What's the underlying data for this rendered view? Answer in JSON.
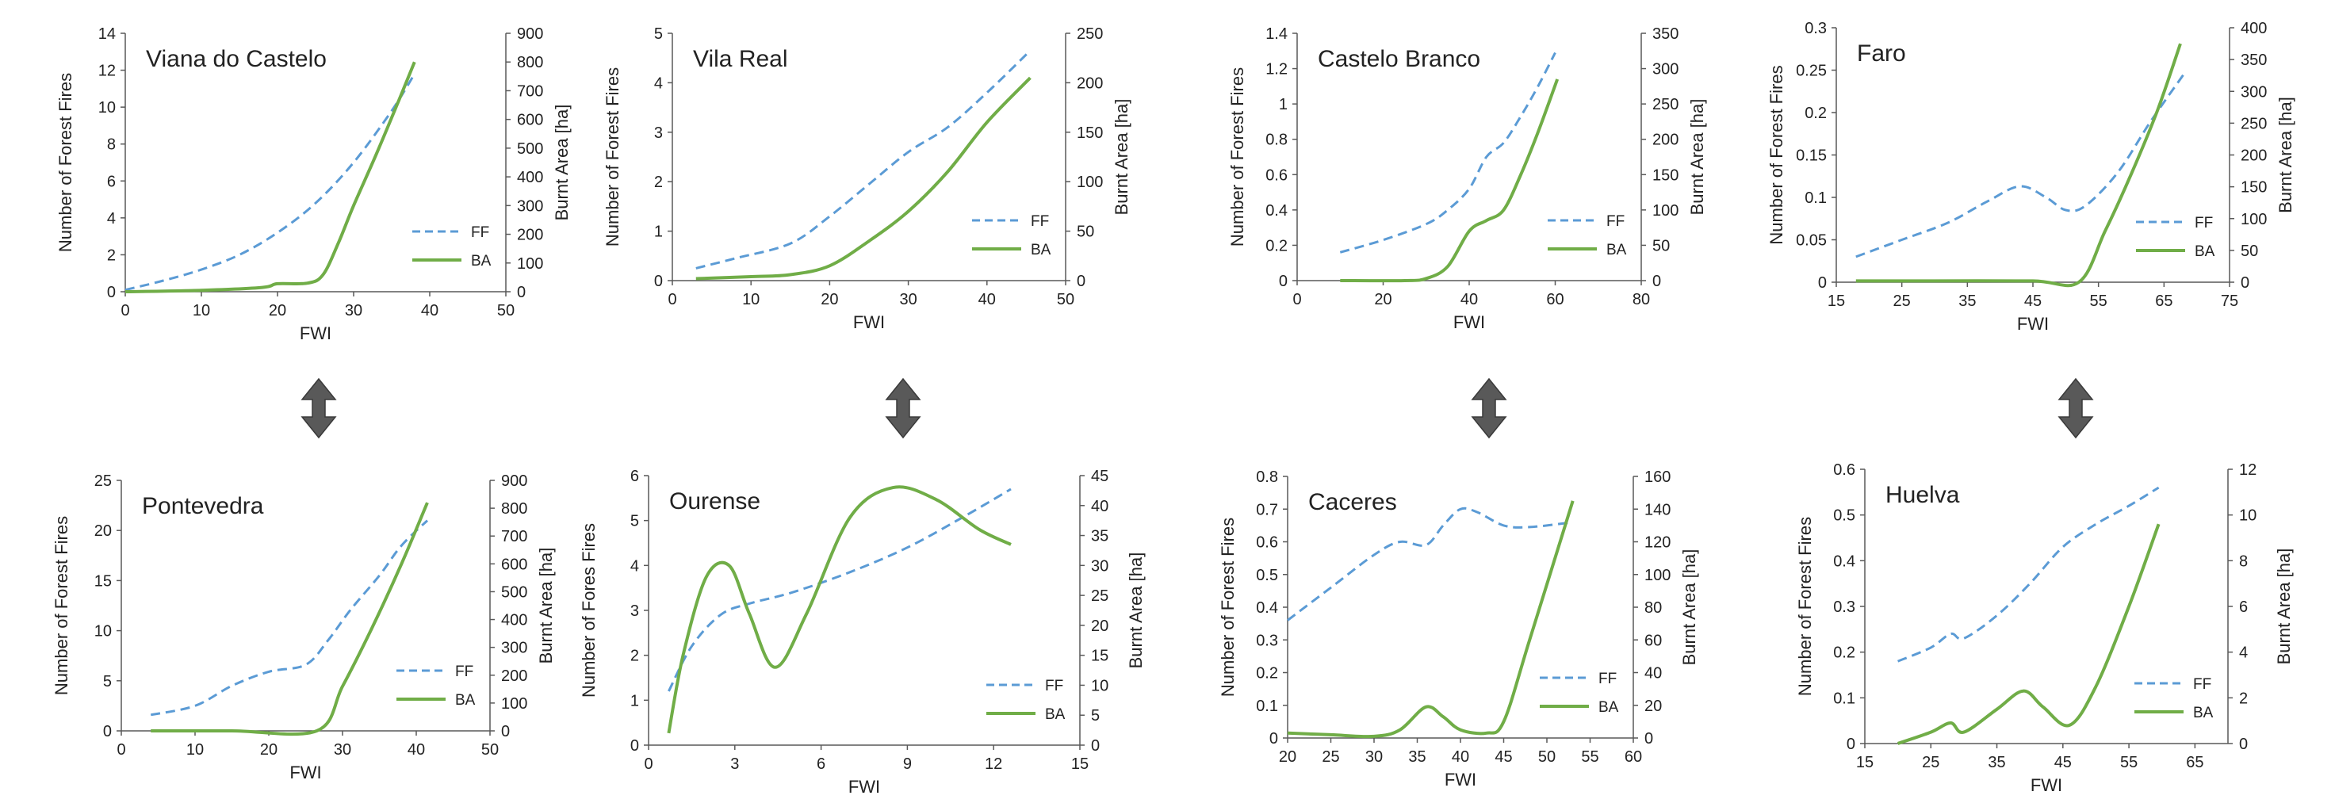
{
  "colors": {
    "ff": "#5B9BD5",
    "ba": "#70AD47",
    "axis": "#595959",
    "arrow": "#595959"
  },
  "icons": [
    "double-headed-vertical-arrow-icon"
  ],
  "chart_data": [
    {
      "id": "viana",
      "type": "line",
      "title": "Viana do Castelo",
      "xlabel": "FWI",
      "ylabel": "Number of Forest Fires",
      "y2label": "Burnt Area [ha]",
      "xlim": [
        0,
        50
      ],
      "xticks": [
        0,
        10,
        20,
        30,
        40,
        50
      ],
      "ylim": [
        0,
        14
      ],
      "yticks": [
        0,
        2,
        4,
        6,
        8,
        10,
        12,
        14
      ],
      "y2lim": [
        0,
        900
      ],
      "y2ticks": [
        0,
        100,
        200,
        300,
        400,
        500,
        600,
        700,
        800,
        900
      ],
      "legend": "bottom-right",
      "series": [
        {
          "name": "FF",
          "axis": "left",
          "style": "dashed",
          "x": [
            0,
            5,
            10,
            15,
            20,
            25,
            30,
            35,
            38
          ],
          "y": [
            0.1,
            0.6,
            1.2,
            2.0,
            3.2,
            4.8,
            7.0,
            9.8,
            11.8
          ]
        },
        {
          "name": "BA",
          "axis": "right",
          "style": "solid",
          "x": [
            0,
            10,
            18,
            20,
            24,
            26,
            28,
            30,
            33,
            36,
            38
          ],
          "y": [
            0,
            5,
            15,
            28,
            30,
            60,
            170,
            300,
            480,
            670,
            800
          ]
        }
      ]
    },
    {
      "id": "vilareal",
      "type": "line",
      "title": "Vila Real",
      "xlabel": "FWI",
      "ylabel": "Number of Forest Fires",
      "y2label": "Burnt Area [ha]",
      "xlim": [
        0,
        50
      ],
      "xticks": [
        0,
        10,
        20,
        30,
        40,
        50
      ],
      "ylim": [
        0,
        5
      ],
      "yticks": [
        0,
        1,
        2,
        3,
        4,
        5
      ],
      "y2lim": [
        0,
        250
      ],
      "y2ticks": [
        0,
        50,
        100,
        150,
        200,
        250
      ],
      "legend": "bottom-right",
      "series": [
        {
          "name": "FF",
          "axis": "left",
          "style": "dashed",
          "x": [
            3,
            8,
            15,
            20,
            25,
            30,
            35,
            40,
            45.5
          ],
          "y": [
            0.25,
            0.45,
            0.75,
            1.3,
            1.95,
            2.6,
            3.1,
            3.8,
            4.65
          ]
        },
        {
          "name": "BA",
          "axis": "right",
          "style": "solid",
          "x": [
            3,
            10,
            15,
            20,
            25,
            30,
            35,
            40,
            45.5
          ],
          "y": [
            2,
            4,
            6,
            15,
            40,
            70,
            110,
            160,
            205
          ]
        }
      ]
    },
    {
      "id": "castelobranco",
      "type": "line",
      "title": "Castelo Branco",
      "xlabel": "FWI",
      "ylabel": "Number of Forest Fires",
      "y2label": "Burnt Area [ha]",
      "xlim": [
        0,
        80
      ],
      "xticks": [
        0,
        20,
        40,
        60,
        80
      ],
      "ylim": [
        0,
        1.4
      ],
      "yticks": [
        0,
        0.2,
        0.4,
        0.6,
        0.8,
        1,
        1.2,
        1.4
      ],
      "y2lim": [
        0,
        350
      ],
      "y2ticks": [
        0,
        50,
        100,
        150,
        200,
        250,
        300,
        350
      ],
      "legend": "bottom-right",
      "series": [
        {
          "name": "FF",
          "axis": "left",
          "style": "dashed",
          "x": [
            10,
            20,
            30,
            35,
            40,
            44,
            48,
            52,
            56,
            60
          ],
          "y": [
            0.16,
            0.23,
            0.32,
            0.4,
            0.52,
            0.7,
            0.78,
            0.93,
            1.1,
            1.29
          ]
        },
        {
          "name": "BA",
          "axis": "right",
          "style": "solid",
          "x": [
            10,
            25,
            30,
            35,
            40,
            44,
            48,
            52,
            56,
            60.5
          ],
          "y": [
            0,
            0,
            3,
            20,
            70,
            85,
            100,
            150,
            210,
            285
          ]
        }
      ]
    },
    {
      "id": "faro",
      "type": "line",
      "title": "Faro",
      "xlabel": "FWI",
      "ylabel": "Number of Forest Fires",
      "y2label": "Burnt Area [ha]",
      "xlim": [
        15,
        75
      ],
      "xticks": [
        15,
        25,
        35,
        45,
        55,
        65,
        75
      ],
      "ylim": [
        0,
        0.3
      ],
      "yticks": [
        0,
        0.05,
        0.1,
        0.15,
        0.2,
        0.25,
        0.3
      ],
      "y2lim": [
        0,
        400
      ],
      "y2ticks": [
        0,
        50,
        100,
        150,
        200,
        250,
        300,
        350,
        400
      ],
      "legend": "bottom-right",
      "series": [
        {
          "name": "FF",
          "axis": "left",
          "style": "dashed",
          "x": [
            18,
            25,
            32,
            38,
            43,
            47,
            50,
            53,
            58,
            63,
            68
          ],
          "y": [
            0.03,
            0.05,
            0.07,
            0.095,
            0.113,
            0.1,
            0.085,
            0.09,
            0.13,
            0.19,
            0.245
          ]
        },
        {
          "name": "BA",
          "axis": "right",
          "style": "solid",
          "x": [
            18,
            30,
            45,
            52,
            56,
            60,
            64,
            67.5
          ],
          "y": [
            2,
            2,
            2,
            0,
            80,
            170,
            270,
            375
          ]
        }
      ]
    },
    {
      "id": "pontevedra",
      "type": "line",
      "title": "Pontevedra",
      "xlabel": "FWI",
      "ylabel": "Number of Forest Fires",
      "y2label": "Burnt Area [ha]",
      "xlim": [
        0,
        50
      ],
      "xticks": [
        0,
        10,
        20,
        30,
        40,
        50
      ],
      "ylim": [
        0,
        25
      ],
      "yticks": [
        0,
        5,
        10,
        15,
        20,
        25
      ],
      "y2lim": [
        0,
        900
      ],
      "y2ticks": [
        0,
        100,
        200,
        300,
        400,
        500,
        600,
        700,
        800,
        900
      ],
      "legend": "bottom-right",
      "series": [
        {
          "name": "FF",
          "axis": "left",
          "style": "dashed",
          "x": [
            4,
            10,
            15,
            20,
            25,
            28,
            31,
            35,
            38,
            41.5
          ],
          "y": [
            1.6,
            2.5,
            4.5,
            5.9,
            6.6,
            9.0,
            12.0,
            15.5,
            18.5,
            21
          ]
        },
        {
          "name": "BA",
          "axis": "right",
          "style": "solid",
          "x": [
            4,
            15,
            26.5,
            30,
            34,
            38,
            41.5
          ],
          "y": [
            0,
            0,
            0,
            160,
            370,
            600,
            820
          ]
        }
      ]
    },
    {
      "id": "ourense",
      "type": "line",
      "title": "Ourense",
      "xlabel": "FWI",
      "ylabel": "Number of Fores Fires",
      "y2label": "Burnt Area [ha]",
      "xlim": [
        0,
        15
      ],
      "xticks": [
        0,
        3,
        6,
        9,
        12,
        15
      ],
      "ylim": [
        0,
        6
      ],
      "yticks": [
        0,
        1,
        2,
        3,
        4,
        5,
        6
      ],
      "y2lim": [
        0,
        45
      ],
      "y2ticks": [
        0,
        5,
        10,
        15,
        20,
        25,
        30,
        35,
        40,
        45
      ],
      "legend": "bottom-right",
      "series": [
        {
          "name": "FF",
          "axis": "left",
          "style": "dashed",
          "x": [
            0.7,
            1.5,
            2.5,
            3.5,
            5,
            7,
            9,
            11,
            12.6
          ],
          "y": [
            1.2,
            2.2,
            2.9,
            3.15,
            3.4,
            3.85,
            4.4,
            5.1,
            5.7
          ]
        },
        {
          "name": "BA",
          "axis": "right",
          "style": "solid",
          "x": [
            0.7,
            1.2,
            2,
            2.8,
            3.5,
            4.4,
            5.5,
            7,
            8.5,
            10,
            11.5,
            12.6
          ],
          "y": [
            2,
            15,
            28,
            30,
            22,
            13,
            22,
            38,
            43,
            41,
            36,
            33.5
          ]
        }
      ]
    },
    {
      "id": "caceres",
      "type": "line",
      "title": "Caceres",
      "xlabel": "FWI",
      "ylabel": "Number of Forest Fires",
      "y2label": "Burnt Area [ha]",
      "xlim": [
        20,
        60
      ],
      "xticks": [
        20,
        25,
        30,
        35,
        40,
        45,
        50,
        55,
        60
      ],
      "ylim": [
        0,
        0.8
      ],
      "yticks": [
        0,
        0.1,
        0.2,
        0.3,
        0.4,
        0.5,
        0.6,
        0.7,
        0.8
      ],
      "y2lim": [
        0,
        160
      ],
      "y2ticks": [
        0,
        20,
        40,
        60,
        80,
        100,
        120,
        140,
        160
      ],
      "legend": "bottom-right",
      "series": [
        {
          "name": "FF",
          "axis": "left",
          "style": "dashed",
          "x": [
            20,
            25,
            30,
            33,
            36,
            38,
            40,
            42,
            45,
            48,
            53
          ],
          "y": [
            0.36,
            0.46,
            0.56,
            0.6,
            0.59,
            0.65,
            0.7,
            0.69,
            0.65,
            0.645,
            0.66
          ]
        },
        {
          "name": "BA",
          "axis": "right",
          "style": "solid",
          "x": [
            20,
            25,
            30,
            33,
            36,
            38,
            40,
            43,
            45,
            48,
            53
          ],
          "y": [
            3,
            2,
            1,
            5,
            19,
            13,
            5,
            3,
            10,
            60,
            145
          ]
        }
      ]
    },
    {
      "id": "huelva",
      "type": "line",
      "title": "Huelva",
      "xlabel": "FWI",
      "ylabel": "Number of Forest Fires",
      "y2label": "Burnt Area [ha]",
      "xlim": [
        15,
        70
      ],
      "xticks": [
        15,
        25,
        35,
        45,
        55,
        65
      ],
      "ylim": [
        0,
        0.6
      ],
      "yticks": [
        0,
        0.1,
        0.2,
        0.3,
        0.4,
        0.5,
        0.6
      ],
      "y2lim": [
        0,
        12
      ],
      "y2ticks": [
        0,
        2,
        4,
        6,
        8,
        10,
        12
      ],
      "legend": "bottom-right",
      "series": [
        {
          "name": "FF",
          "axis": "left",
          "style": "dashed",
          "x": [
            20,
            25,
            28,
            30,
            35,
            40,
            45,
            50,
            55,
            59.5
          ],
          "y": [
            0.18,
            0.21,
            0.24,
            0.23,
            0.28,
            0.35,
            0.43,
            0.48,
            0.52,
            0.56
          ]
        },
        {
          "name": "BA",
          "axis": "right",
          "style": "solid",
          "x": [
            20,
            25,
            28,
            30,
            35,
            39,
            42,
            46,
            50,
            55,
            59.5
          ],
          "y": [
            0,
            0.5,
            0.9,
            0.5,
            1.5,
            2.3,
            1.6,
            0.8,
            2.5,
            6,
            9.6
          ]
        }
      ]
    }
  ]
}
